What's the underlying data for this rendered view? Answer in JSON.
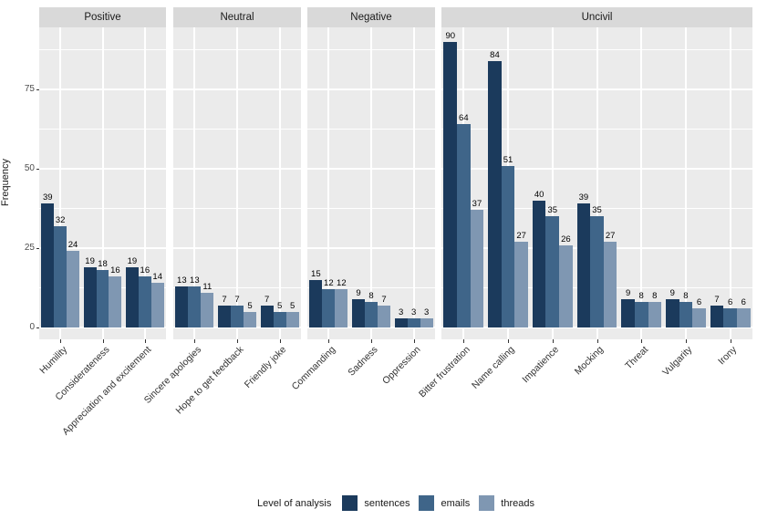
{
  "chart_data": {
    "type": "bar",
    "title": "",
    "ylabel": "Frequency",
    "y_ticks": [
      0,
      25,
      50,
      75
    ],
    "y_minor_ticks": [
      12.5,
      37.5,
      62.5,
      87.5
    ],
    "ylim": [
      0,
      94
    ],
    "grid": "on",
    "legend_position": "bottom",
    "legend_title": "Level of analysis",
    "series": [
      {
        "name": "sentences",
        "color": "#1b3a5c"
      },
      {
        "name": "emails",
        "color": "#3f6589"
      },
      {
        "name": "threads",
        "color": "#7f97b2"
      }
    ],
    "facets": [
      {
        "label": "Positive",
        "categories": [
          "Humility",
          "Considerateness",
          "Appreciation and excitement"
        ],
        "values": [
          [
            39,
            32,
            24
          ],
          [
            19,
            18,
            16
          ],
          [
            19,
            16,
            14
          ]
        ]
      },
      {
        "label": "Neutral",
        "categories": [
          "Sincere apologies",
          "Hope to get feedback",
          "Friendly joke"
        ],
        "values": [
          [
            13,
            13,
            11
          ],
          [
            7,
            7,
            5
          ],
          [
            7,
            5,
            5
          ]
        ]
      },
      {
        "label": "Negative",
        "categories": [
          "Commanding",
          "Sadness",
          "Oppression"
        ],
        "values": [
          [
            15,
            12,
            12
          ],
          [
            9,
            8,
            7
          ],
          [
            3,
            3,
            3
          ]
        ]
      },
      {
        "label": "Uncivil",
        "categories": [
          "Bitter frustration",
          "Name calling",
          "Impatience",
          "Mocking",
          "Threat",
          "Vulgarity",
          "Irony"
        ],
        "values": [
          [
            90,
            64,
            37
          ],
          [
            84,
            51,
            27
          ],
          [
            40,
            35,
            26
          ],
          [
            39,
            35,
            27
          ],
          [
            9,
            8,
            8
          ],
          [
            9,
            8,
            6
          ],
          [
            7,
            6,
            6
          ]
        ]
      }
    ],
    "colors": {
      "panel_background": "#ebebeb",
      "strip_background": "#d9d9d9",
      "gridline": "#ffffff",
      "axis_text": "#4d4d4d",
      "tick_mark": "#333333"
    }
  }
}
